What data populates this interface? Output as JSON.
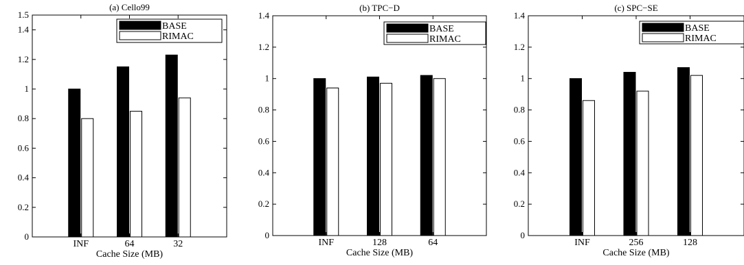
{
  "colors": {
    "base": "#000000",
    "rimac": "#ffffff",
    "axis": "#000000"
  },
  "chart_data": [
    {
      "type": "bar",
      "title": "(a) Cello99",
      "xlabel": "Cache Size (MB)",
      "ylabel": "",
      "categories": [
        "INF",
        "64",
        "32"
      ],
      "ylim": [
        0,
        1.5
      ],
      "yticks": [
        "0",
        "0.2",
        "0.4",
        "0.6",
        "0.8",
        "1",
        "1.2",
        "1.4",
        "1.5"
      ],
      "ytick_values": [
        0,
        0.2,
        0.4,
        0.6,
        0.8,
        1,
        1.2,
        1.4,
        1.5
      ],
      "grid": false,
      "legend_position": "top-right",
      "series": [
        {
          "name": "BASE",
          "values": [
            1.0,
            1.15,
            1.23
          ]
        },
        {
          "name": "RIMAC",
          "values": [
            0.8,
            0.85,
            0.94
          ]
        }
      ]
    },
    {
      "type": "bar",
      "title": "(b) TPC−D",
      "xlabel": "Cache Size (MB)",
      "ylabel": "",
      "categories": [
        "INF",
        "128",
        "64"
      ],
      "ylim": [
        0,
        1.4
      ],
      "yticks": [
        "0",
        "0.2",
        "0.4",
        "0.6",
        "0.8",
        "1",
        "1.2",
        "1.4"
      ],
      "ytick_values": [
        0,
        0.2,
        0.4,
        0.6,
        0.8,
        1,
        1.2,
        1.4
      ],
      "grid": false,
      "legend_position": "top-right",
      "series": [
        {
          "name": "BASE",
          "values": [
            1.0,
            1.01,
            1.02
          ]
        },
        {
          "name": "RIMAC",
          "values": [
            0.94,
            0.97,
            1.0
          ]
        }
      ]
    },
    {
      "type": "bar",
      "title": "(c) SPC−SE",
      "xlabel": "Cache Size (MB)",
      "ylabel": "",
      "categories": [
        "INF",
        "256",
        "128"
      ],
      "ylim": [
        0,
        1.4
      ],
      "yticks": [
        "0",
        "0.2",
        "0.4",
        "0.6",
        "0.8",
        "1",
        "1.2",
        "1.4"
      ],
      "ytick_values": [
        0,
        0.2,
        0.4,
        0.6,
        0.8,
        1,
        1.2,
        1.4
      ],
      "grid": false,
      "legend_position": "top-right",
      "series": [
        {
          "name": "BASE",
          "values": [
            1.0,
            1.04,
            1.07
          ]
        },
        {
          "name": "RIMAC",
          "values": [
            0.86,
            0.92,
            1.02
          ]
        }
      ]
    }
  ]
}
